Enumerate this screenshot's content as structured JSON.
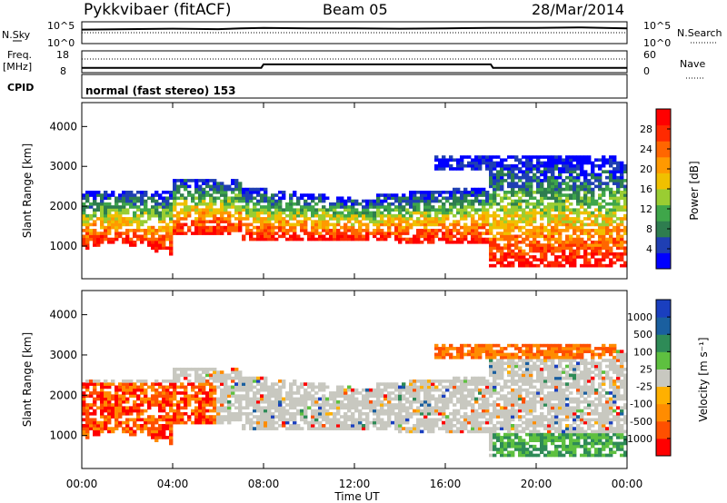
{
  "header": {
    "station": "Pykkvibaer (fitACF)",
    "beam": "Beam 05",
    "date": "28/Mar/2014"
  },
  "noise_panel": {
    "left_label": "N.Sky",
    "left_ticks": [
      "10^5",
      "10^0"
    ],
    "right_label": "N.Search",
    "right_ticks": [
      "10^5",
      "10^0"
    ]
  },
  "freq_panel": {
    "left_label_1": "Freq.",
    "left_label_2": "[MHz]",
    "left_ticks": [
      "18",
      "8"
    ],
    "right_label": "Nave",
    "right_ticks": [
      "60",
      "0"
    ]
  },
  "cpid_panel": {
    "label": "CPID",
    "mode_text": "normal (fast stereo) 153"
  },
  "power_panel": {
    "ylabel": "Slant Range [km]",
    "yticks": [
      "4000",
      "3000",
      "2000",
      "1000"
    ],
    "colorbar_label": "Power [dB]",
    "colorbar_ticks": [
      "28",
      "24",
      "20",
      "16",
      "12",
      "8",
      "4"
    ],
    "colorbar_colors": [
      "#0000ff",
      "#1f3fb3",
      "#2e7d4f",
      "#3fa64a",
      "#9acd32",
      "#f0c000",
      "#ff9900",
      "#ff6600",
      "#ff2a00",
      "#ff0000"
    ]
  },
  "velocity_panel": {
    "ylabel": "Slant Range [km]",
    "yticks": [
      "4000",
      "3000",
      "2000",
      "1000"
    ],
    "colorbar_label": "Velocity [m s⁻¹]",
    "colorbar_ticks": [
      "1000",
      "500",
      "100",
      "25",
      "-25",
      "-100",
      "-500",
      "-1000"
    ],
    "colorbar_colors": [
      "#1a3fbf",
      "#1a5f9f",
      "#2e8b57",
      "#5ec040",
      "#c8c8c0",
      "#ffb000",
      "#ff8c00",
      "#ff5000",
      "#ff0000"
    ]
  },
  "xaxis": {
    "label": "Time UT",
    "ticks": [
      "00:00",
      "04:00",
      "08:00",
      "12:00",
      "16:00",
      "20:00",
      "00:00"
    ]
  },
  "chart_data": [
    {
      "type": "line",
      "title": "N.Sky",
      "x_hours": [
        0,
        2,
        4,
        6,
        7,
        8,
        10,
        12,
        14,
        16,
        18,
        20,
        22,
        24
      ],
      "note_scale": "log",
      "ylim": [
        "10^0",
        "10^5"
      ],
      "series": [
        {
          "name": "N.Sky",
          "values": [
            3.2,
            3.3,
            3.4,
            3.3,
            3.5,
            3.6,
            3.5,
            3.5,
            3.4,
            3.5,
            3.6,
            3.6,
            3.7,
            3.5
          ]
        }
      ]
    },
    {
      "type": "line",
      "title": "Freq.",
      "x_hours": [
        0,
        3,
        7.9,
        8.0,
        12,
        16,
        18.0,
        18.1,
        21,
        24
      ],
      "ylim": [
        8,
        18
      ],
      "series": [
        {
          "name": "Freq.",
          "values": [
            10.2,
            10.2,
            10.2,
            11.8,
            11.8,
            11.8,
            11.8,
            10.2,
            10.2,
            10.2
          ]
        }
      ]
    },
    {
      "type": "heatmap",
      "title": "Power [dB]",
      "x_hours_range": [
        0,
        24
      ],
      "y_range_km": [
        180,
        4600
      ],
      "clim": [
        0,
        30
      ]
    },
    {
      "type": "heatmap",
      "title": "Velocity [m s⁻¹]",
      "x_hours_range": [
        0,
        24
      ],
      "y_range_km": [
        180,
        4600
      ],
      "clim": [
        -1000,
        1000
      ]
    }
  ]
}
